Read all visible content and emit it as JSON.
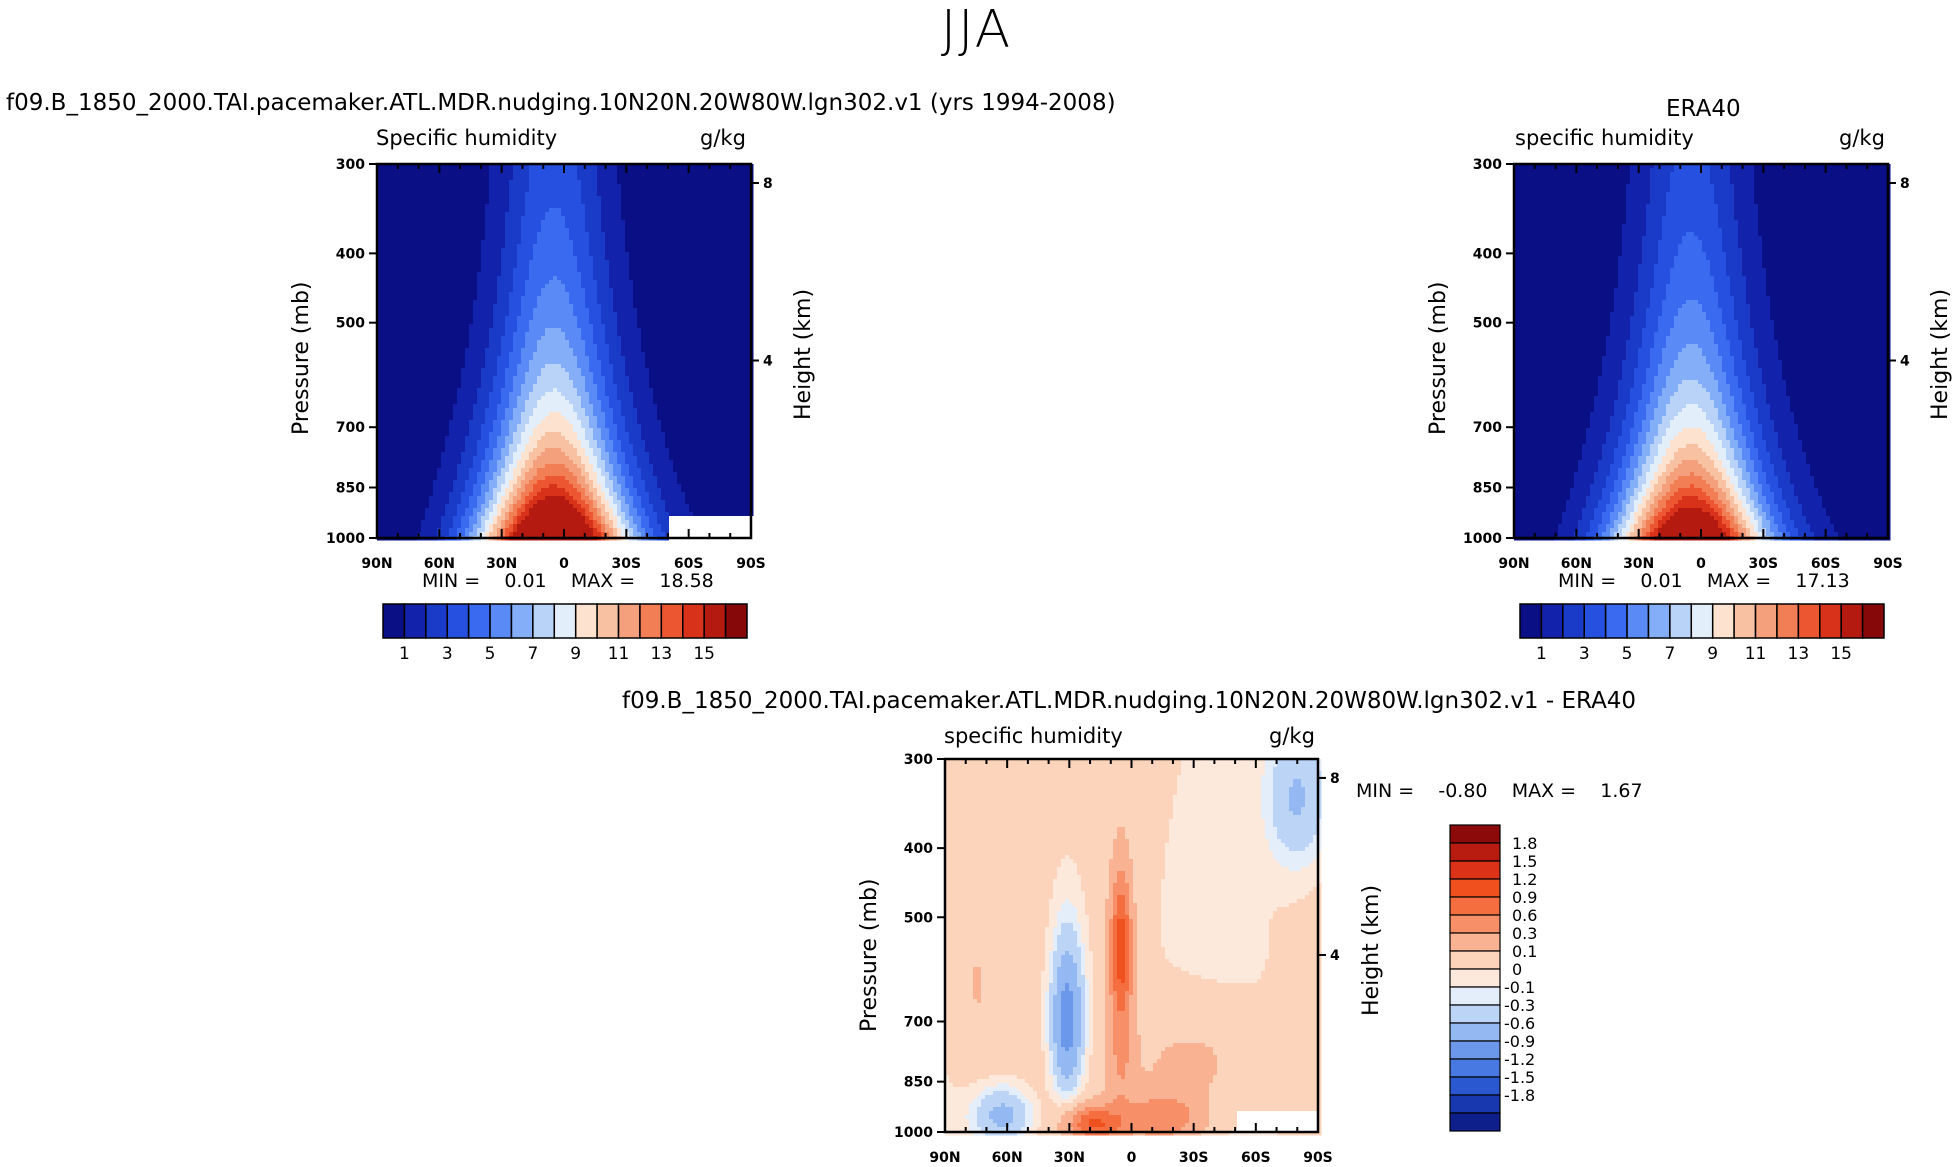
{
  "figure": {
    "title": "JJA"
  },
  "chart_data": [
    {
      "type": "heatmap",
      "id": "model",
      "title": "f09.B_1850_2000.TAI.pacemaker.ATL.MDR.nudging.10N20N.20W80W.lgn302.v1 (yrs 1994-2008)",
      "left_label": "Specific humidity",
      "right_label": "g/kg",
      "ylabel": "Pressure (mb)",
      "y2label": "Height (km)",
      "x_ticks": [
        "90N",
        "60N",
        "30N",
        "0",
        "30S",
        "60S",
        "90S"
      ],
      "x_values": [
        90,
        60,
        30,
        0,
        -30,
        -60,
        -90
      ],
      "y_ticks": [
        "300",
        "400",
        "500",
        "700",
        "850",
        "1000"
      ],
      "y_values": [
        300,
        400,
        500,
        700,
        850,
        1000
      ],
      "y2_ticks": [
        "8",
        "4"
      ],
      "y2_values": [
        8,
        4
      ],
      "ylim": [
        300,
        1000
      ],
      "xlim": [
        90,
        -90
      ],
      "min_label": "MIN =",
      "min_value": "0.01",
      "max_label": "MAX =",
      "max_value": "18.58",
      "peak_lat": 5,
      "masked_region": {
        "lat_from": -50,
        "lat_to": -90,
        "p_from": 930,
        "p_to": 1000
      }
    },
    {
      "type": "heatmap",
      "id": "era40",
      "title": "ERA40",
      "left_label": "specific humidity",
      "right_label": "g/kg",
      "ylabel": "Pressure (mb)",
      "y2label": "Height (km)",
      "x_ticks": [
        "90N",
        "60N",
        "30N",
        "0",
        "30S",
        "60S",
        "90S"
      ],
      "x_values": [
        90,
        60,
        30,
        0,
        -30,
        -60,
        -90
      ],
      "y_ticks": [
        "300",
        "400",
        "500",
        "700",
        "850",
        "1000"
      ],
      "y_values": [
        300,
        400,
        500,
        700,
        850,
        1000
      ],
      "y2_ticks": [
        "8",
        "4"
      ],
      "y2_values": [
        8,
        4
      ],
      "ylim": [
        300,
        1000
      ],
      "xlim": [
        90,
        -90
      ],
      "min_label": "MIN =",
      "min_value": "0.01",
      "max_label": "MAX =",
      "max_value": "17.13",
      "peak_lat": 5
    },
    {
      "type": "heatmap",
      "id": "diff",
      "title": "f09.B_1850_2000.TAI.pacemaker.ATL.MDR.nudging.10N20N.20W80W.lgn302.v1 - ERA40",
      "left_label": "specific humidity",
      "right_label": "g/kg",
      "ylabel": "Pressure (mb)",
      "y2label": "Height (km)",
      "x_ticks": [
        "90N",
        "60N",
        "30N",
        "0",
        "30S",
        "60S",
        "90S"
      ],
      "x_values": [
        90,
        60,
        30,
        0,
        -30,
        -60,
        -90
      ],
      "y_ticks": [
        "300",
        "400",
        "500",
        "700",
        "850",
        "1000"
      ],
      "y_values": [
        300,
        400,
        500,
        700,
        850,
        1000
      ],
      "y2_ticks": [
        "8",
        "4"
      ],
      "y2_values": [
        8,
        4
      ],
      "ylim": [
        300,
        1000
      ],
      "xlim": [
        90,
        -90
      ],
      "min_label": "MIN =",
      "min_value": "-0.80",
      "max_label": "MAX =",
      "max_value": "1.67",
      "masked_region": {
        "lat_from": -50,
        "lat_to": -90,
        "p_from": 930,
        "p_to": 1000
      }
    }
  ],
  "colorbar_abs": {
    "levels": [
      1,
      2,
      3,
      4,
      5,
      6,
      7,
      8,
      9,
      10,
      11,
      12,
      13,
      14,
      15
    ],
    "labels": [
      "1",
      "3",
      "5",
      "7",
      "9",
      "11",
      "13",
      "15"
    ],
    "colors": [
      "#0a0f86",
      "#1222aa",
      "#1a3ac8",
      "#2650e0",
      "#3a6af0",
      "#5a8af6",
      "#84aef8",
      "#b8d2f8",
      "#e2eefa",
      "#fde3cf",
      "#f8c2a2",
      "#f5a07c",
      "#f27e56",
      "#ec5630",
      "#d8321a",
      "#b41a10",
      "#860808"
    ]
  },
  "colorbar_diff": {
    "labels": [
      "1.8",
      "1.5",
      "1.2",
      "0.9",
      "0.6",
      "0.3",
      "0.1",
      "0",
      "-0.1",
      "-0.3",
      "-0.6",
      "-0.9",
      "-1.2",
      "-1.5",
      "-1.8"
    ],
    "colors": [
      "#8c0a0a",
      "#b81c10",
      "#dc3218",
      "#f0501e",
      "#f46e40",
      "#f79068",
      "#f9b392",
      "#fcd3bb",
      "#fde9dc",
      "#e4eefa",
      "#bcd4f6",
      "#94b8f2",
      "#6c98ec",
      "#4878e2",
      "#2a58d0",
      "#1838b0",
      "#0e1f8c"
    ]
  }
}
